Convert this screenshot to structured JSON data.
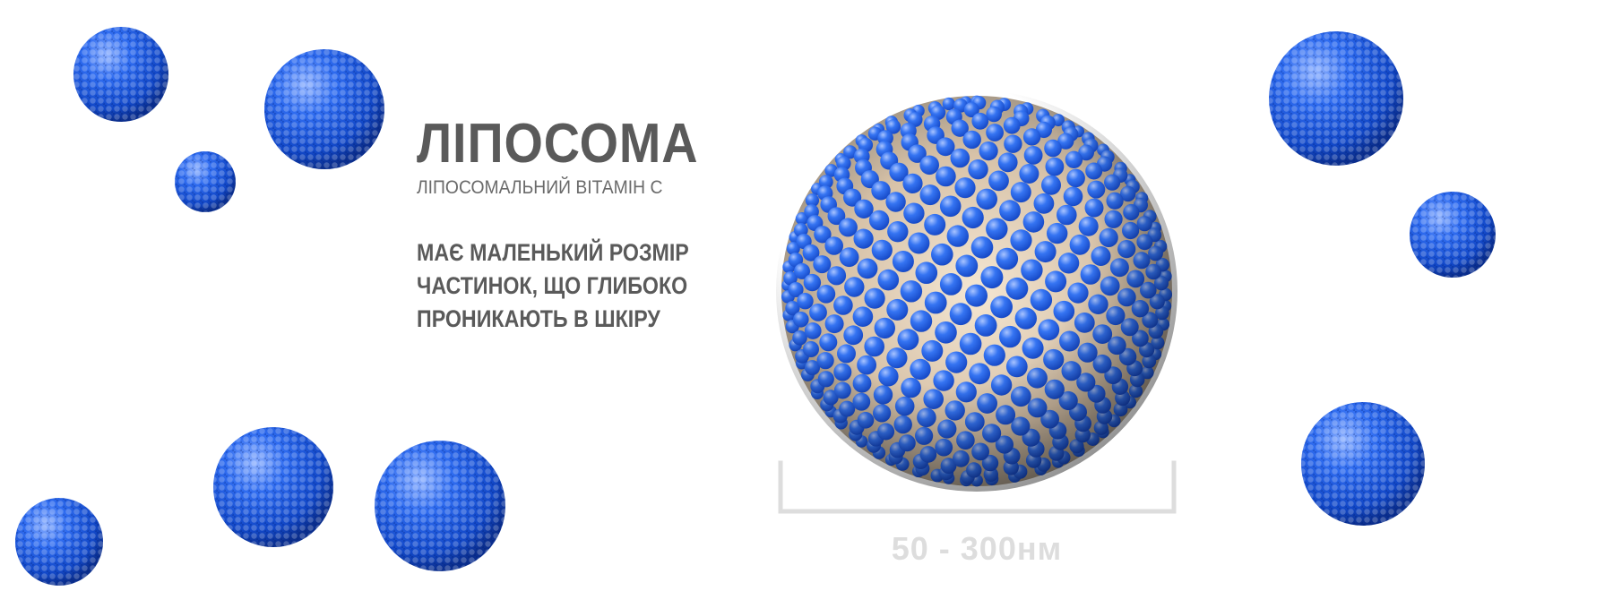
{
  "title": "ЛІПОСОМА",
  "subtitle": "ЛІПОСОМАЛЬНИЙ ВІТАМІН С",
  "description": {
    "line1": "МАЄ МАЛЕНЬКИЙ РОЗМІР",
    "line2": "ЧАСТИНОК, ЩО ГЛИБОКО",
    "line3": "ПРОНИКАЮТЬ В ШКІРУ"
  },
  "size_label": "50 - 300нм",
  "colors": {
    "sphere_blue": "#1f5fe0",
    "text_gray": "#5a5a5a",
    "scale_gray": "#dddddd"
  }
}
